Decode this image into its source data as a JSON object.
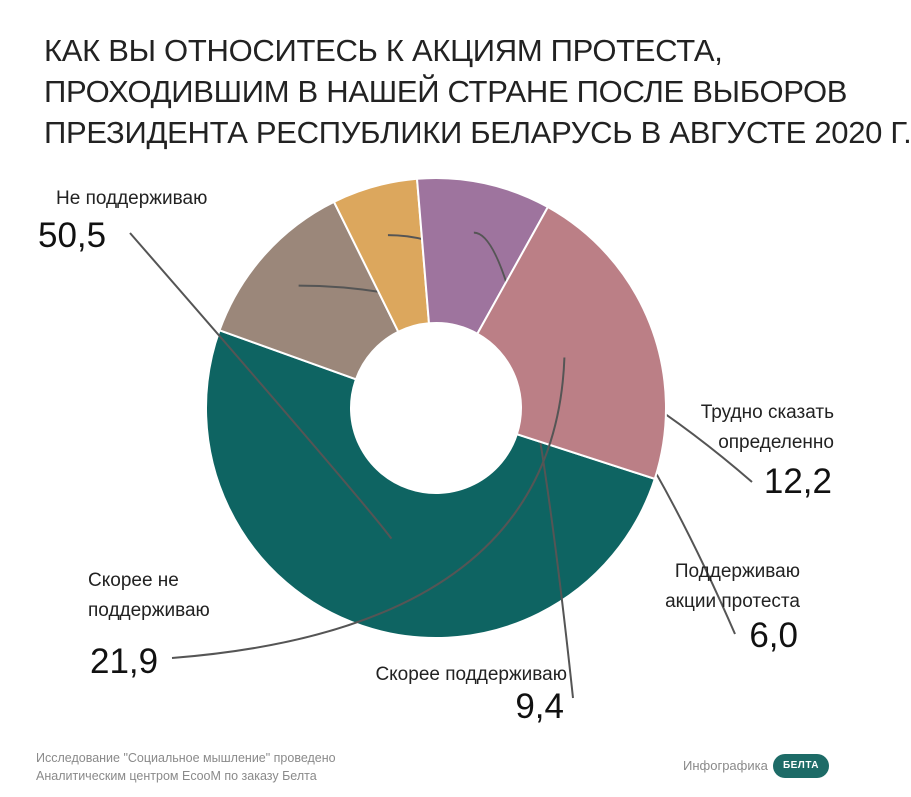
{
  "title_lines": [
    "КАК ВЫ ОТНОСИТЕСЬ К АКЦИЯМ ПРОТЕСТА,",
    "ПРОХОДИВШИМ В НАШЕЙ СТРАНЕ ПОСЛЕ ВЫБОРОВ",
    "ПРЕЗИДЕНТА РЕСПУБЛИКИ БЕЛАРУСЬ В АВГУСТЕ 2020 Г."
  ],
  "chart_data": {
    "type": "pie",
    "donut": true,
    "title": "КАК ВЫ ОТНОСИТЕСЬ К АКЦИЯМ ПРОТЕСТА, ПРОХОДИВШИМ В НАШЕЙ СТРАНЕ ПОСЛЕ ВЫБОРОВ ПРЕЗИДЕНТА РЕСПУБЛИКИ БЕЛАРУСЬ В АВГУСТЕ 2020 Г.",
    "slices": [
      {
        "label_lines": [
          "Не поддерживаю"
        ],
        "value": 50.5,
        "value_label": "50,5",
        "color": "#0e6462"
      },
      {
        "label_lines": [
          "Трудно сказать",
          "определенно"
        ],
        "value": 12.2,
        "value_label": "12,2",
        "color": "#9b877a"
      },
      {
        "label_lines": [
          "Поддерживаю",
          "акции протеста"
        ],
        "value": 6.0,
        "value_label": "6,0",
        "color": "#dca75d"
      },
      {
        "label_lines": [
          "Скорее поддерживаю"
        ],
        "value": 9.4,
        "value_label": "9,4",
        "color": "#9e749e"
      },
      {
        "label_lines": [
          "Скорее не",
          "поддерживаю"
        ],
        "value": 21.9,
        "value_label": "21,9",
        "color": "#bb7f86"
      }
    ]
  },
  "footer": {
    "source_lines": [
      "Исследование \"Социальное мышление\" проведено",
      "Аналитическим центром EcooM по заказу Белта"
    ],
    "infographic_label": "Инфографика",
    "logo_text": "БЕЛТА"
  }
}
